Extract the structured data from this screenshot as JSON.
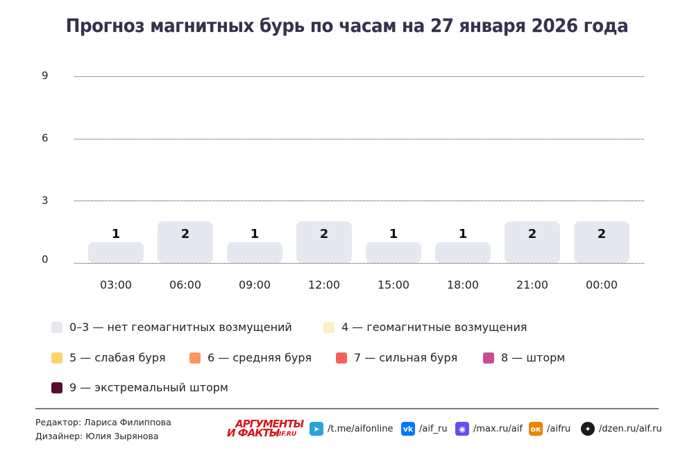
{
  "title": "Прогноз магнитных бурь по часам на 27 января 2026 года",
  "chart_data": {
    "type": "bar",
    "title": "Прогноз магнитных бурь по часам на 27 января 2026 года",
    "xlabel": "",
    "ylabel": "",
    "ylim": [
      0,
      9
    ],
    "yticks": [
      0,
      3,
      6,
      9
    ],
    "grid": true,
    "legend_position": "bottom",
    "categories": [
      "03:00",
      "06:00",
      "09:00",
      "12:00",
      "15:00",
      "18:00",
      "21:00",
      "00:00"
    ],
    "values": [
      1,
      2,
      1,
      2,
      1,
      1,
      2,
      2
    ],
    "value_labels": [
      "1",
      "2",
      "1",
      "2",
      "1",
      "1",
      "2",
      "2"
    ],
    "bar_color": "#e5e8f1",
    "legend": [
      {
        "label": "0–3 — нет геомагнитных возмущений",
        "color": "#e5e8f1"
      },
      {
        "label": "4 — геомагнитные возмущения",
        "color": "#fdefc9"
      },
      {
        "label": "5 — слабая буря",
        "color": "#fcd46e"
      },
      {
        "label": "6 — средняя буря",
        "color": "#fb9660"
      },
      {
        "label": "7 — сильная буря",
        "color": "#f1635a"
      },
      {
        "label": "8 — шторм",
        "color": "#c84d8c"
      },
      {
        "label": "9 — экстремальный шторм",
        "color": "#5a0b2e"
      }
    ]
  },
  "footer": {
    "editor": "Редактор: Лариса Филиппова",
    "designer": "Дизайнер: Юлия Зырянова",
    "logo": {
      "line1": "АРГУМЕНТЫ",
      "line2": "И ФАКТЫ",
      "site": "AIF.RU"
    },
    "social": [
      {
        "icon": "telegram-icon",
        "glyph": "➤",
        "color": "#2aa3dc",
        "label": "/t.me/aifonline"
      },
      {
        "icon": "vk-icon",
        "glyph": "vk",
        "color": "#0077ff",
        "label": "/aif_ru"
      },
      {
        "icon": "max-icon",
        "glyph": "◉",
        "color": "#6a4cf0",
        "label": "/max.ru/aif"
      },
      {
        "icon": "odnoklassniki-icon",
        "glyph": "ок",
        "color": "#ee8208",
        "label": "/aifru"
      },
      {
        "icon": "dzen-icon",
        "glyph": "✦",
        "color": "#1a1a1a",
        "label": "/dzen.ru/aif.ru"
      }
    ]
  }
}
